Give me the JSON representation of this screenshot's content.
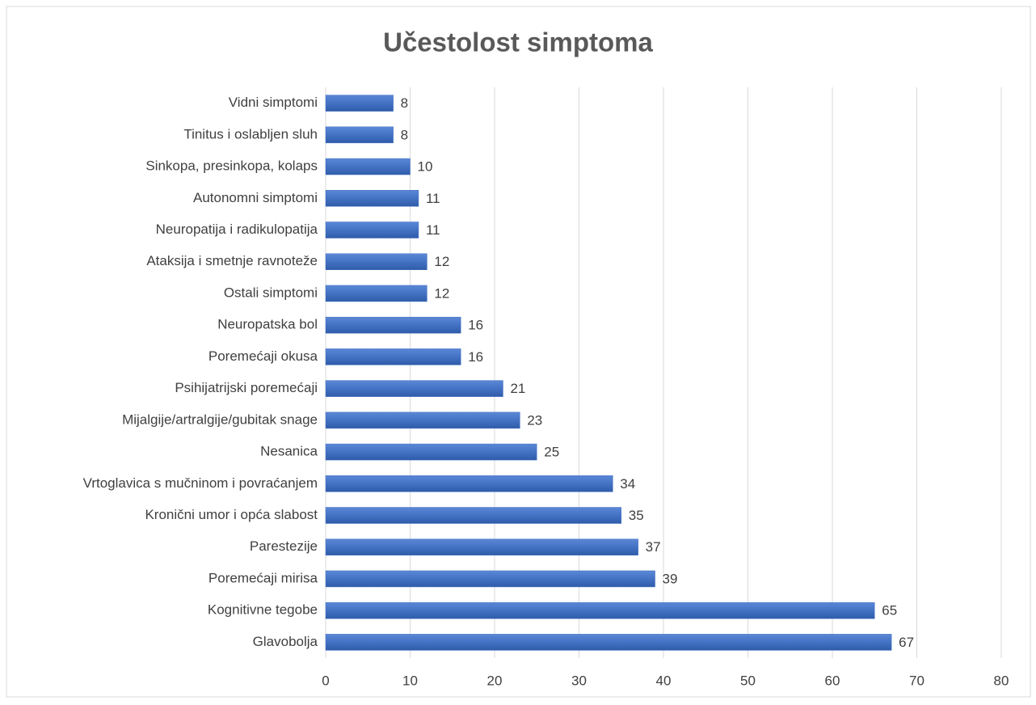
{
  "chart_data": {
    "type": "bar",
    "orientation": "horizontal",
    "title": "Učestolost simptoma",
    "categories": [
      "Vidni simptomi",
      "Tinitus i oslabljen sluh",
      "Sinkopa, presinkopa, kolaps",
      "Autonomni simptomi",
      "Neuropatija i radikulopatija",
      "Ataksija i smetnje ravnoteže",
      "Ostali simptomi",
      "Neuropatska bol",
      "Poremećaji okusa",
      "Psihijatrijski poremećaji",
      "Mijalgije/artralgije/gubitak snage",
      "Nesanica",
      "Vrtoglavica s mučninom i povraćanjem",
      "Kronični umor i opća slabost",
      "Parestezije",
      "Poremećaji mirisa",
      "Kognitivne tegobe",
      "Glavobolja"
    ],
    "values": [
      8,
      8,
      10,
      11,
      11,
      12,
      12,
      16,
      16,
      21,
      23,
      25,
      34,
      35,
      37,
      39,
      65,
      67
    ],
    "color": "#4472c4",
    "xlim": [
      0,
      80
    ],
    "xticks": [
      0,
      10,
      20,
      30,
      40,
      50,
      60,
      70,
      80
    ],
    "grid": true
  }
}
